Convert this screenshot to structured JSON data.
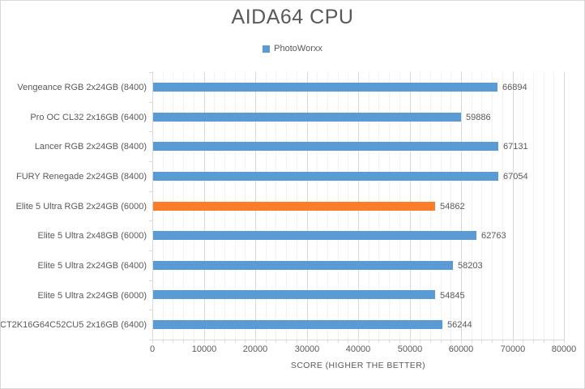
{
  "chart_data": {
    "type": "bar",
    "orientation": "horizontal",
    "title": "AIDA64 CPU",
    "legend": [
      {
        "label": "PhotoWorxx",
        "color": "#5B9BD5"
      }
    ],
    "legend_position": "top",
    "categories": [
      "Vengeance RGB 2x24GB (8400)",
      "Pro OC CL32 2x16GB (6400)",
      "Lancer RGB 2x24GB (8400)",
      "FURY Renegade 2x24GB (8400)",
      "Elite 5 Ultra RGB 2x24GB (6000)",
      "Elite 5 Ultra 2x48GB (6000)",
      "Elite 5 Ultra 2x24GB (6400)",
      "Elite 5 Ultra 2x24GB (6000)",
      "CT2K16G64C52CU5 2x16GB (6400)"
    ],
    "series": [
      {
        "name": "PhotoWorxx",
        "values": [
          66894,
          59886,
          67131,
          67054,
          54862,
          62763,
          58203,
          54845,
          56244
        ]
      }
    ],
    "highlight_index": 4,
    "xlabel": "SCORE (HIGHER THE BETTER)",
    "xlim": [
      0,
      80000
    ],
    "x_major_step": 10000,
    "x_minor_step": 2000,
    "x_tick_labels": [
      "0",
      "10000",
      "20000",
      "30000",
      "40000",
      "50000",
      "60000",
      "70000",
      "80000"
    ],
    "grid": "vertical major and minor, no horizontal",
    "colors": {
      "bar": "#5B9BD5",
      "highlight_bar": "#FA7D29",
      "major_gridline": "#D9D9D9",
      "minor_gridline": "#F2F2F2",
      "axis_line": "#D9D9D9",
      "text": "#595959",
      "chart_border": "#D9D9D9"
    }
  }
}
